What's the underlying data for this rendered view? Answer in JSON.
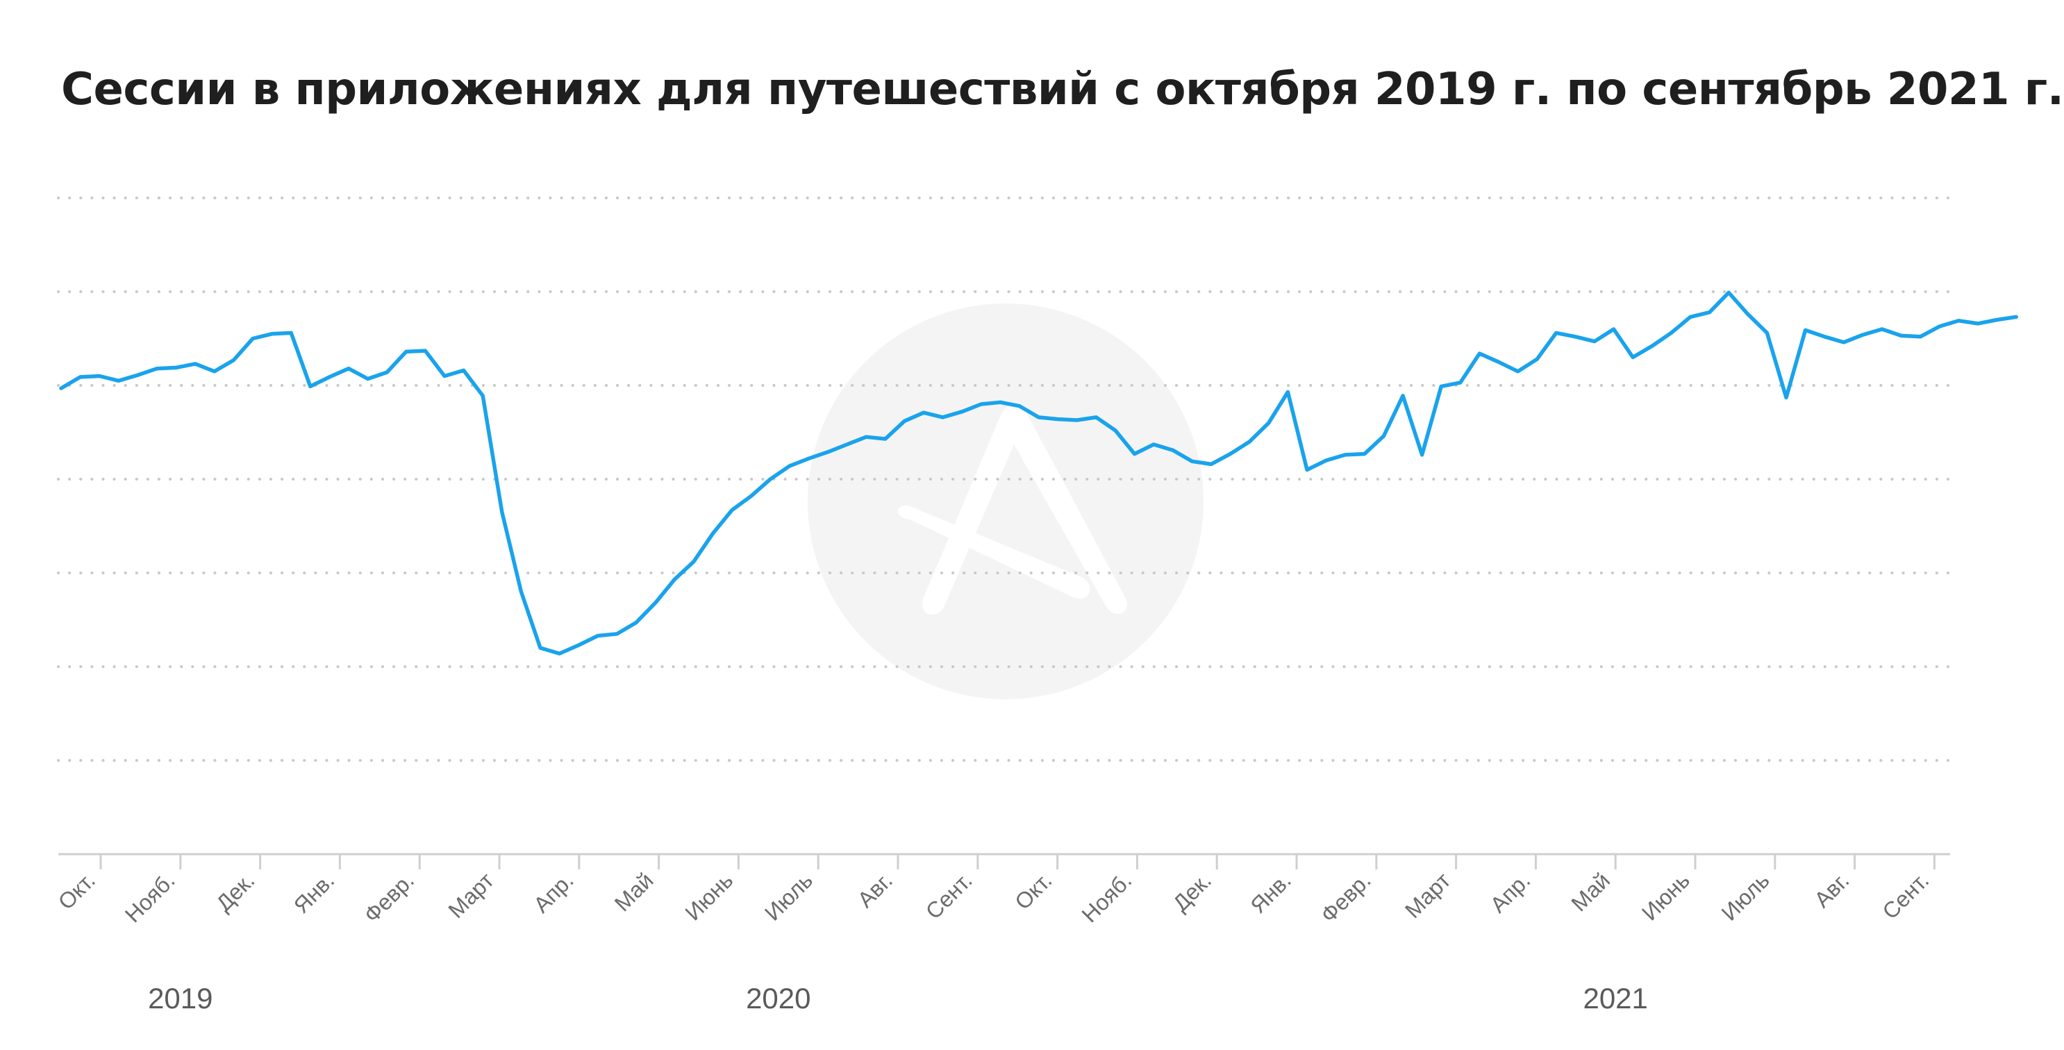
{
  "title": "Сессии в приложениях для путешествий с октября 2019 г. по сентябрь 2021 г.",
  "colors": {
    "line": "#1aa3ec",
    "grid": "#c8c8c8",
    "watermark": "#f3f3f3"
  },
  "watermark_icon": "logo-watermark-icon",
  "chart_data": {
    "type": "line",
    "title": "Сессии в приложениях для путешествий с октября 2019 г. по сентябрь 2021 г.",
    "xlabel": "",
    "ylabel": "",
    "grid": true,
    "y_axis_labels": false,
    "ylim": [
      0,
      7
    ],
    "months": [
      "Окт.",
      "Нояб.",
      "Дек.",
      "Янв.",
      "Февр.",
      "Март",
      "Апр.",
      "Май",
      "Июнь",
      "Июль",
      "Авг.",
      "Сент.",
      "Окт.",
      "Нояб.",
      "Дек.",
      "Янв.",
      "Февр.",
      "Март",
      "Апр.",
      "Май",
      "Июнь",
      "Июль",
      "Авг.",
      "Сент."
    ],
    "years": [
      "2019",
      "2020",
      "2021"
    ],
    "series": [
      {
        "week": [
          0,
          1,
          2,
          3,
          4,
          5,
          6,
          7,
          8,
          9,
          10,
          11,
          12,
          13,
          14,
          15,
          16,
          17,
          18,
          19,
          20,
          21,
          22,
          23,
          24,
          25,
          26,
          27,
          28,
          29,
          30,
          31,
          32,
          33,
          34,
          35,
          36,
          37,
          38,
          39,
          40,
          41,
          42,
          43,
          44,
          45,
          46,
          47,
          48,
          49,
          50,
          51,
          52,
          53,
          54,
          55,
          56,
          57,
          58,
          59,
          60,
          61,
          62,
          63,
          64,
          65,
          66,
          67,
          68,
          69,
          70,
          71,
          72,
          73,
          74,
          75,
          76,
          77,
          78,
          79,
          80,
          81,
          82,
          83,
          84,
          85,
          86,
          87,
          88,
          89,
          90,
          91,
          92,
          93,
          94,
          95,
          96,
          97,
          98,
          99,
          100,
          101,
          102
        ],
        "values": [
          4.97,
          5.09,
          5.1,
          5.05,
          5.11,
          5.18,
          5.19,
          5.23,
          5.15,
          5.27,
          5.5,
          5.55,
          5.56,
          4.99,
          5.09,
          5.18,
          5.07,
          5.14,
          5.36,
          5.37,
          5.1,
          5.16,
          4.89,
          3.65,
          2.8,
          2.2,
          2.14,
          2.23,
          2.33,
          2.35,
          2.47,
          2.68,
          2.93,
          3.12,
          3.42,
          3.67,
          3.82,
          4.0,
          4.14,
          4.22,
          4.29,
          4.37,
          4.45,
          4.43,
          4.62,
          4.71,
          4.66,
          4.72,
          4.8,
          4.82,
          4.78,
          4.66,
          4.64,
          4.63,
          4.66,
          4.52,
          4.27,
          4.37,
          4.31,
          4.19,
          4.16,
          4.27,
          4.4,
          4.6,
          4.93,
          4.1,
          4.2,
          4.26,
          4.27,
          4.46,
          4.89,
          4.26,
          4.99,
          5.03,
          5.34,
          5.25,
          5.15,
          5.28,
          5.56,
          5.52,
          5.47,
          5.6,
          5.3,
          5.42,
          5.56,
          5.73,
          5.78,
          5.99,
          5.76,
          5.56,
          4.87,
          5.59,
          5.52,
          5.46,
          5.54,
          5.6,
          5.53,
          5.52,
          5.63,
          5.69,
          5.66,
          5.7,
          5.73
        ]
      }
    ]
  }
}
